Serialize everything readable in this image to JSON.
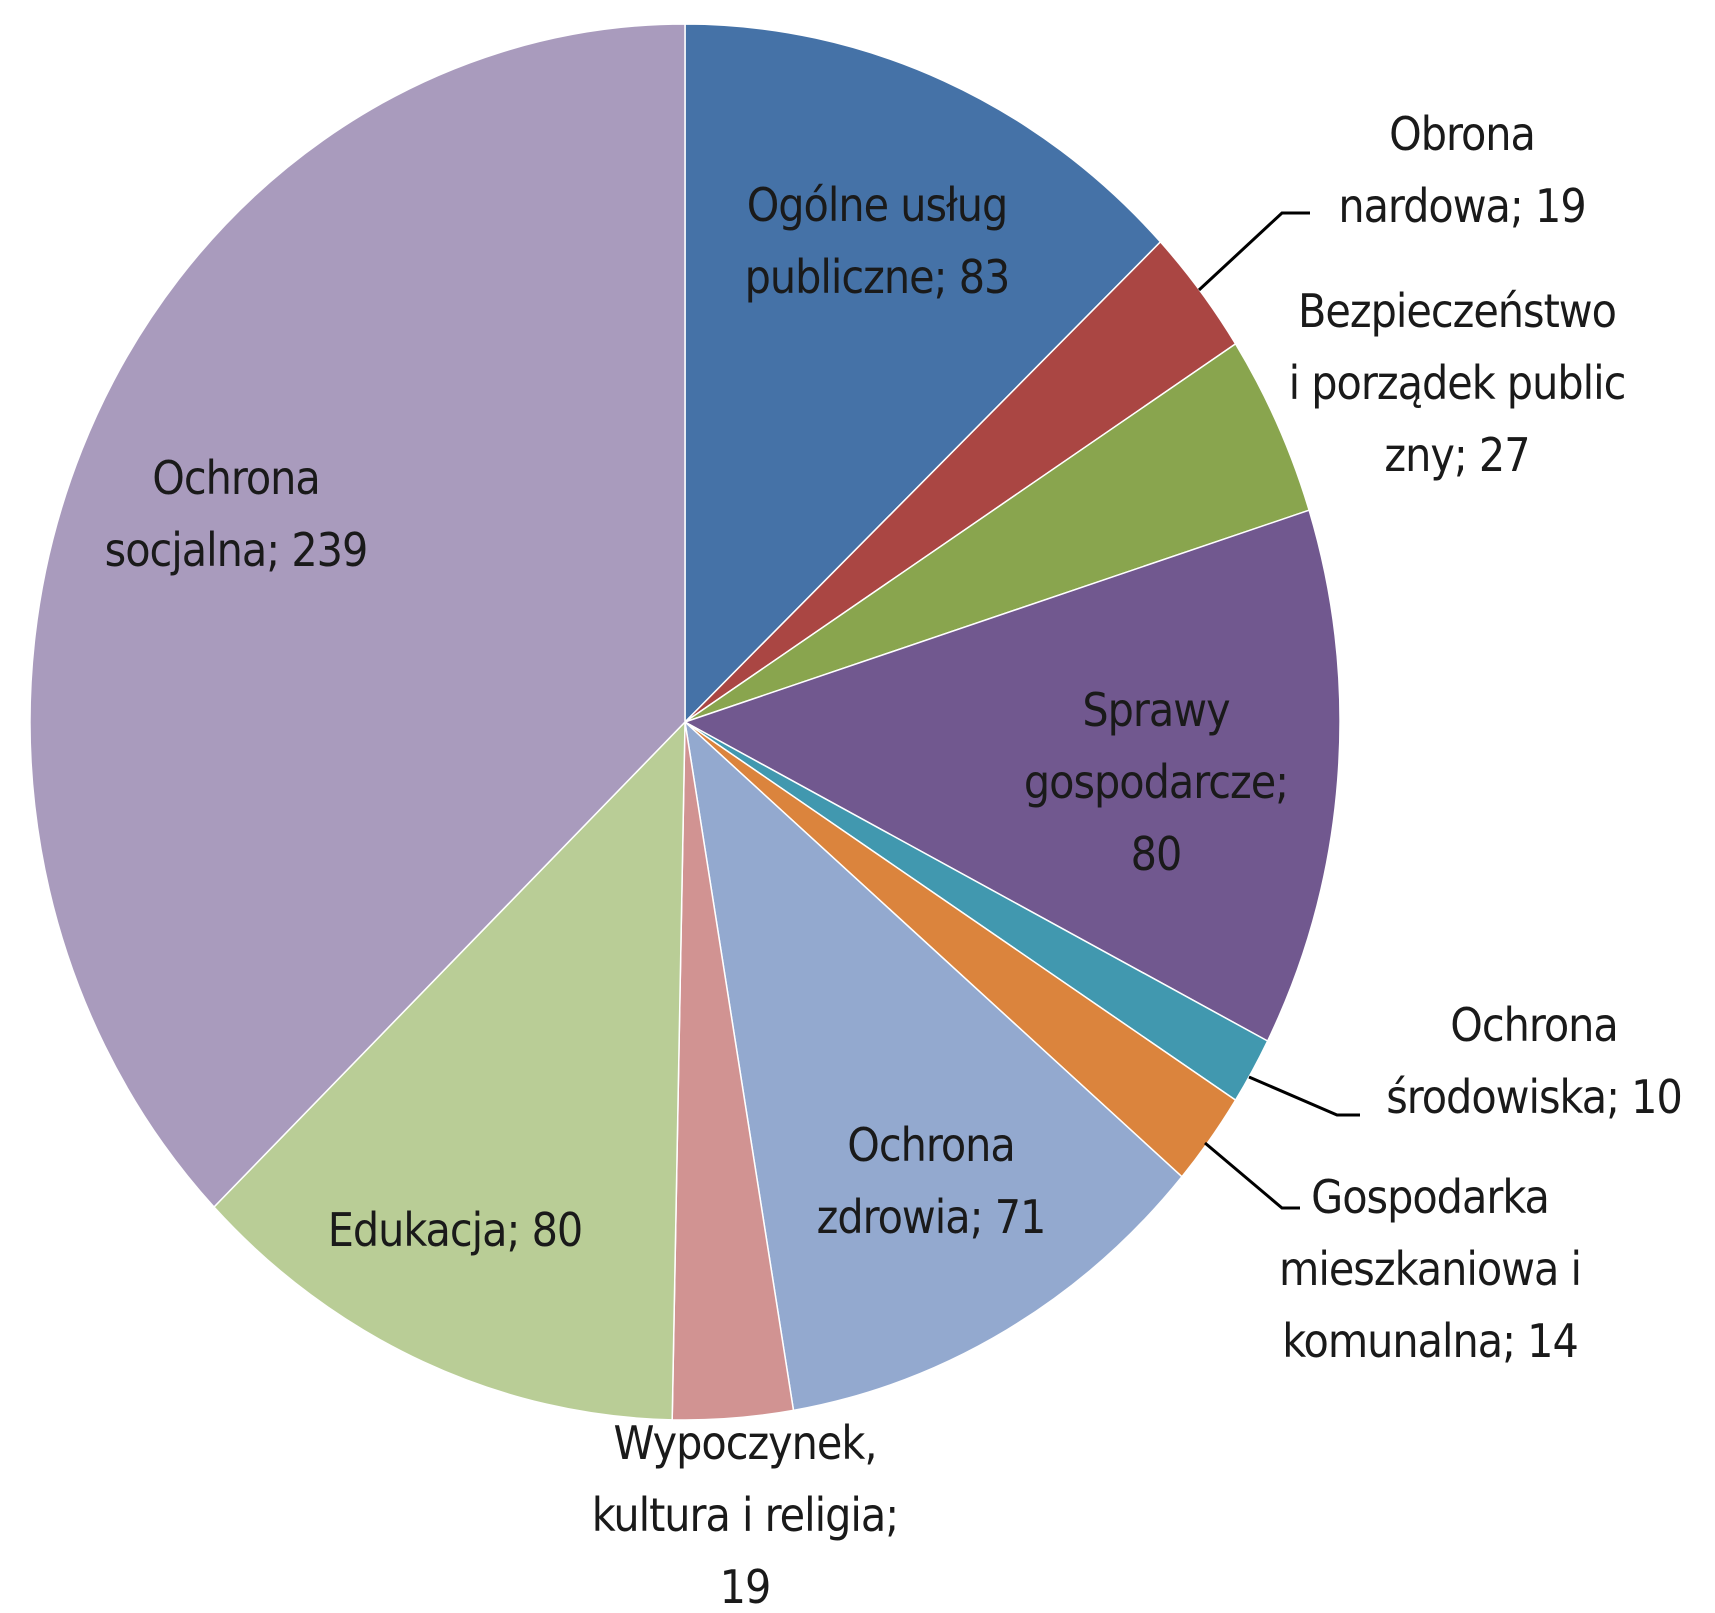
{
  "chart_data": {
    "type": "pie",
    "labels": [
      "Ogólne usług publiczne; 83",
      "Obrona nardowa; 19",
      "Bezpieczeństwo i porządek publiczny; 27",
      "Sprawy gospodarcze; 80",
      "Ochrona środowiska; 10",
      "Gospodarka mieszkaniowa i komunalna; 14",
      "Ochrona zdrowia; 71",
      "Wypoczynek, kultura i religia; 19",
      "Edukacja; 80",
      "Ochrona socjalna; 239"
    ],
    "values": [
      83,
      19,
      27,
      80,
      10,
      14,
      71,
      19,
      80,
      239
    ],
    "colors": [
      "#4572a7",
      "#aa4643",
      "#89a54e",
      "#71588f",
      "#4198af",
      "#db843d",
      "#93a9cf",
      "#d19392",
      "#b9cd96",
      "#a99bbd"
    ]
  }
}
